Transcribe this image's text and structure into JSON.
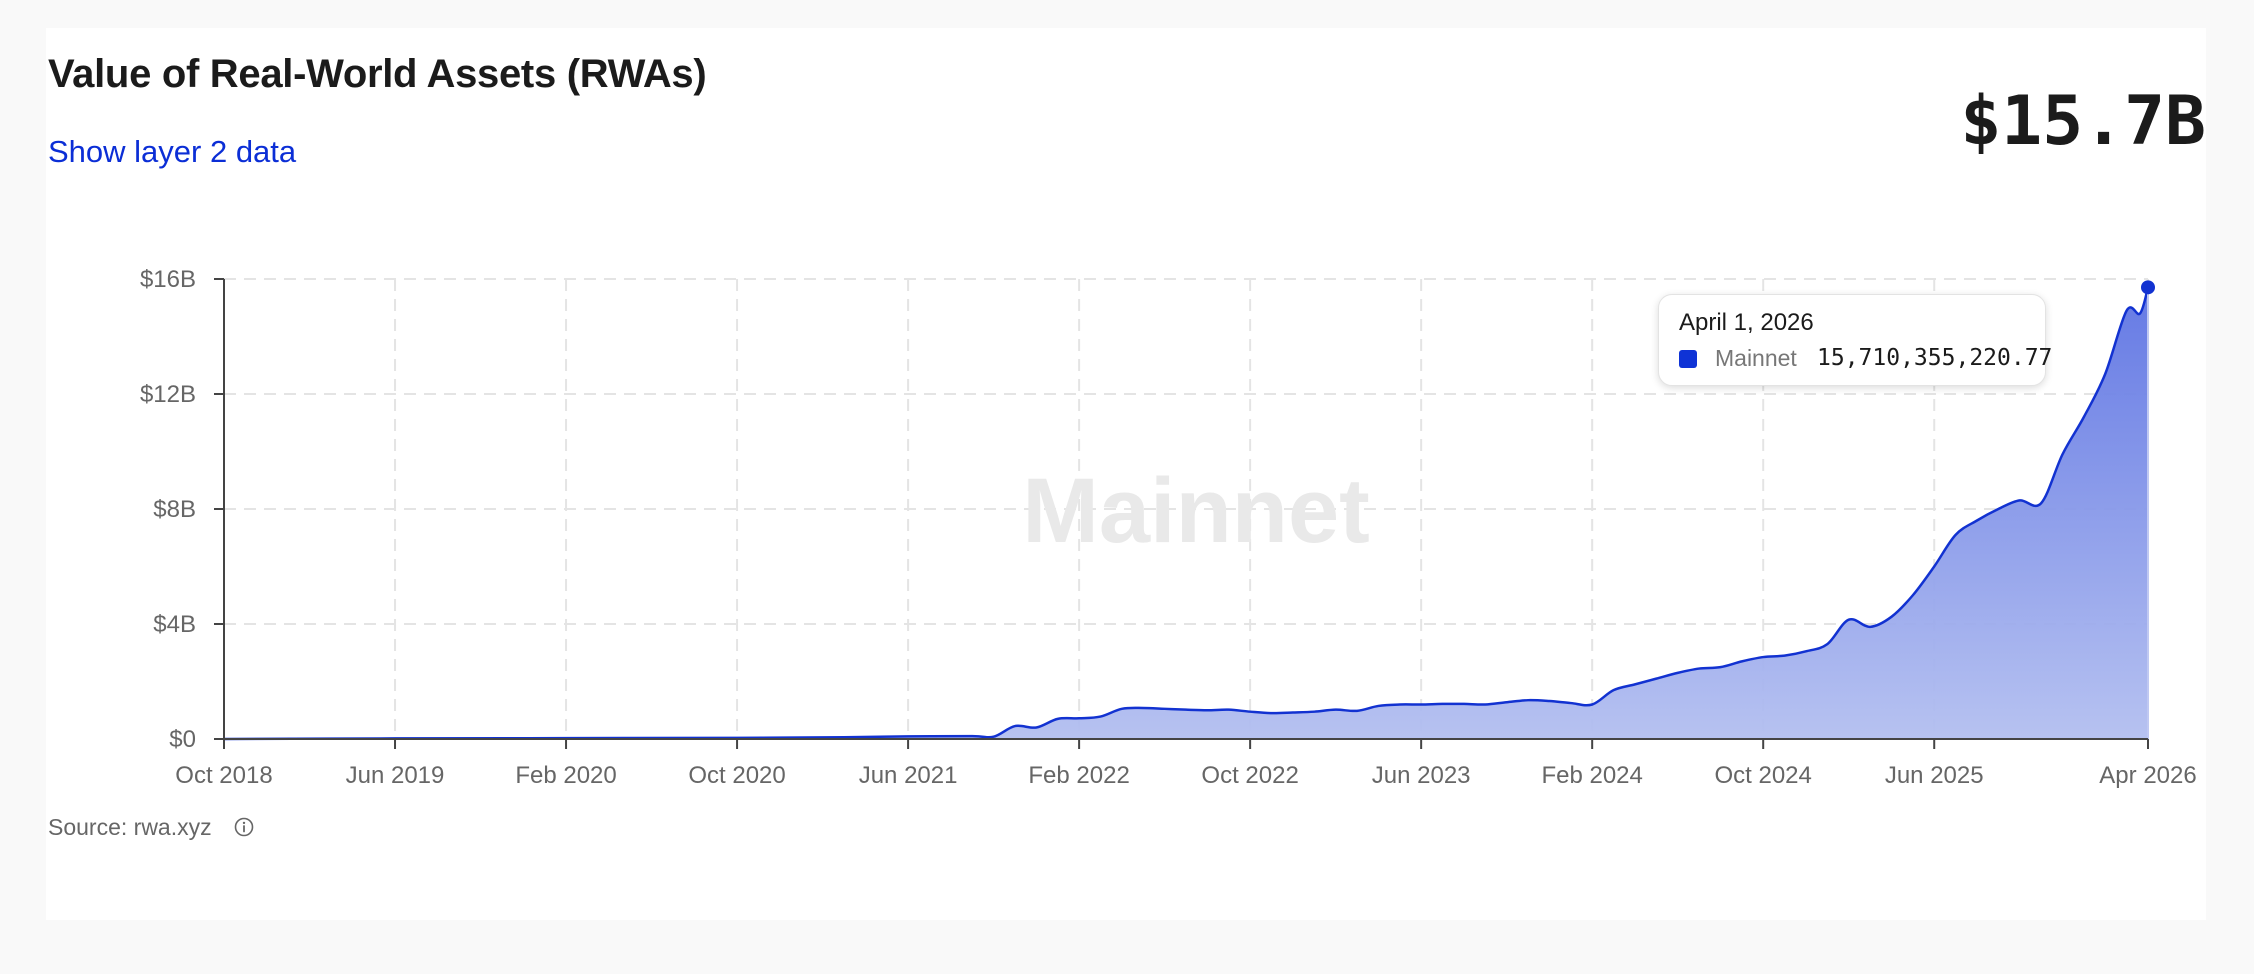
{
  "header": {
    "title": "Value of Real-World Assets (RWAs)",
    "link_label": "Show layer 2 data",
    "total_value": "$15.7B"
  },
  "tooltip": {
    "date": "April 1, 2026",
    "series": "Mainnet",
    "value": "15,710,355,220.77",
    "swatch_color": "#0f33d6"
  },
  "footer": {
    "source": "Source: rwa.xyz",
    "icon": "info-icon"
  },
  "chart_data": {
    "type": "area",
    "watermark": "Mainnet",
    "line_color": "#1232d1",
    "fill_color": "#a9b5ee",
    "ylim": [
      0,
      16
    ],
    "y_ticks": [
      {
        "v": 0,
        "label": "$0"
      },
      {
        "v": 4,
        "label": "$4B"
      },
      {
        "v": 8,
        "label": "$8B"
      },
      {
        "v": 12,
        "label": "$12B"
      },
      {
        "v": 16,
        "label": "$16B"
      }
    ],
    "x_ticks": [
      {
        "t": "2018-10",
        "label": "Oct 2018"
      },
      {
        "t": "2019-06",
        "label": "Jun 2019"
      },
      {
        "t": "2020-02",
        "label": "Feb 2020"
      },
      {
        "t": "2020-10",
        "label": "Oct 2020"
      },
      {
        "t": "2021-06",
        "label": "Jun 2021"
      },
      {
        "t": "2022-02",
        "label": "Feb 2022"
      },
      {
        "t": "2022-10",
        "label": "Oct 2022"
      },
      {
        "t": "2023-06",
        "label": "Jun 2023"
      },
      {
        "t": "2024-02",
        "label": "Feb 2024"
      },
      {
        "t": "2024-10",
        "label": "Oct 2024"
      },
      {
        "t": "2025-06",
        "label": "Jun 2025"
      },
      {
        "t": "2026-04",
        "label": "Apr 2026"
      }
    ],
    "series": [
      {
        "values": [
          [
            "2018-10",
            0.0
          ],
          [
            "2019-06",
            0.02
          ],
          [
            "2020-02",
            0.03
          ],
          [
            "2020-10",
            0.04
          ],
          [
            "2021-03",
            0.06
          ],
          [
            "2021-06",
            0.09
          ],
          [
            "2021-09",
            0.1
          ],
          [
            "2021-10",
            0.08
          ],
          [
            "2021-11",
            0.45
          ],
          [
            "2021-12",
            0.4
          ],
          [
            "2022-01",
            0.7
          ],
          [
            "2022-02",
            0.72
          ],
          [
            "2022-03",
            0.78
          ],
          [
            "2022-04",
            1.05
          ],
          [
            "2022-05",
            1.08
          ],
          [
            "2022-06",
            1.05
          ],
          [
            "2022-07",
            1.02
          ],
          [
            "2022-08",
            1.0
          ],
          [
            "2022-09",
            1.02
          ],
          [
            "2022-10",
            0.95
          ],
          [
            "2022-11",
            0.9
          ],
          [
            "2022-12",
            0.92
          ],
          [
            "2023-01",
            0.95
          ],
          [
            "2023-02",
            1.02
          ],
          [
            "2023-03",
            0.98
          ],
          [
            "2023-04",
            1.15
          ],
          [
            "2023-05",
            1.2
          ],
          [
            "2023-06",
            1.2
          ],
          [
            "2023-07",
            1.22
          ],
          [
            "2023-08",
            1.22
          ],
          [
            "2023-09",
            1.2
          ],
          [
            "2023-10",
            1.28
          ],
          [
            "2023-11",
            1.35
          ],
          [
            "2023-12",
            1.32
          ],
          [
            "2024-01",
            1.25
          ],
          [
            "2024-02",
            1.2
          ],
          [
            "2024-03",
            1.7
          ],
          [
            "2024-04",
            1.9
          ],
          [
            "2024-05",
            2.1
          ],
          [
            "2024-06",
            2.3
          ],
          [
            "2024-07",
            2.45
          ],
          [
            "2024-08",
            2.5
          ],
          [
            "2024-09",
            2.7
          ],
          [
            "2024-10",
            2.85
          ],
          [
            "2024-11",
            2.9
          ],
          [
            "2024-12",
            3.05
          ],
          [
            "2025-01",
            3.3
          ],
          [
            "2025-02",
            4.15
          ],
          [
            "2025-03",
            3.9
          ],
          [
            "2025-04",
            4.25
          ],
          [
            "2025-05",
            5.0
          ],
          [
            "2025-06",
            6.0
          ],
          [
            "2025-07",
            7.1
          ],
          [
            "2025-08",
            7.6
          ],
          [
            "2025-09",
            8.0
          ],
          [
            "2025-10",
            8.3
          ],
          [
            "2025-11",
            8.2
          ],
          [
            "2025-12",
            9.9
          ],
          [
            "2026-01",
            11.2
          ],
          [
            "2026-02",
            12.7
          ],
          [
            "2026-03",
            14.9
          ],
          [
            "2026-03-20",
            14.8
          ],
          [
            "2026-04",
            15.71
          ]
        ]
      }
    ]
  }
}
